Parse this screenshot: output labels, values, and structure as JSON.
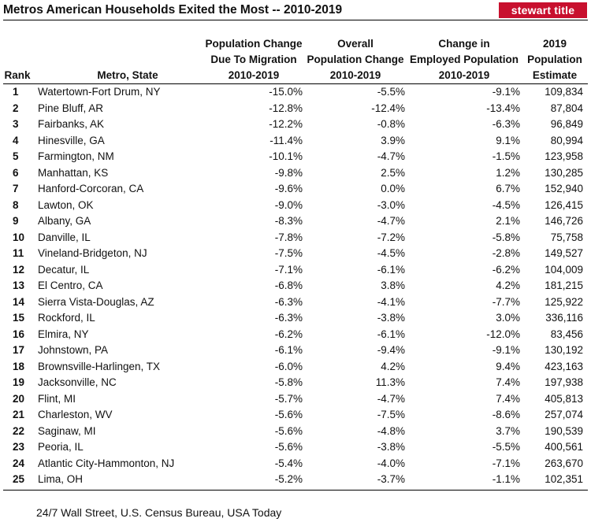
{
  "title": "Metros American Households Exited the Most -- 2010-2019",
  "logo_text": "stewart title",
  "brand_color": "#c8102e",
  "source": "24/7 Wall Street, U.S. Census Bureau, USA Today",
  "headers": {
    "rank": "Rank",
    "metro": "Metro, State",
    "migration": [
      "Population Change",
      "Due To Migration",
      "2010-2019"
    ],
    "overall": [
      "Overall",
      "Population Change",
      "2010-2019"
    ],
    "employed": [
      "Change in",
      "Employed Population",
      "2010-2019"
    ],
    "population": [
      "2019",
      "Population",
      "Estimate"
    ]
  },
  "chart_data": {
    "type": "table",
    "title": "Metros American Households Exited the Most -- 2010-2019",
    "columns": [
      "Rank",
      "Metro, State",
      "Population Change Due To Migration 2010-2019",
      "Overall Population Change 2010-2019",
      "Change in Employed Population 2010-2019",
      "2019 Population Estimate"
    ],
    "rows": [
      [
        "1",
        "Watertown-Fort Drum, NY",
        "-15.0%",
        "-5.5%",
        "-9.1%",
        "109,834"
      ],
      [
        "2",
        "Pine Bluff, AR",
        "-12.8%",
        "-12.4%",
        "-13.4%",
        "87,804"
      ],
      [
        "3",
        "Fairbanks, AK",
        "-12.2%",
        "-0.8%",
        "-6.3%",
        "96,849"
      ],
      [
        "4",
        "Hinesville, GA",
        "-11.4%",
        "3.9%",
        "9.1%",
        "80,994"
      ],
      [
        "5",
        "Farmington, NM",
        "-10.1%",
        "-4.7%",
        "-1.5%",
        "123,958"
      ],
      [
        "6",
        "Manhattan, KS",
        "-9.8%",
        "2.5%",
        "1.2%",
        "130,285"
      ],
      [
        "7",
        "Hanford-Corcoran, CA",
        "-9.6%",
        "0.0%",
        "6.7%",
        "152,940"
      ],
      [
        "8",
        "Lawton, OK",
        "-9.0%",
        "-3.0%",
        "-4.5%",
        "126,415"
      ],
      [
        "9",
        "Albany, GA",
        "-8.3%",
        "-4.7%",
        "2.1%",
        "146,726"
      ],
      [
        "10",
        "Danville, IL",
        "-7.8%",
        "-7.2%",
        "-5.8%",
        "75,758"
      ],
      [
        "11",
        "Vineland-Bridgeton, NJ",
        "-7.5%",
        "-4.5%",
        "-2.8%",
        "149,527"
      ],
      [
        "12",
        "Decatur, IL",
        "-7.1%",
        "-6.1%",
        "-6.2%",
        "104,009"
      ],
      [
        "13",
        "El Centro, CA",
        "-6.8%",
        "3.8%",
        "4.2%",
        "181,215"
      ],
      [
        "14",
        "Sierra Vista-Douglas, AZ",
        "-6.3%",
        "-4.1%",
        "-7.7%",
        "125,922"
      ],
      [
        "15",
        "Rockford, IL",
        "-6.3%",
        "-3.8%",
        "3.0%",
        "336,116"
      ],
      [
        "16",
        "Elmira, NY",
        "-6.2%",
        "-6.1%",
        "-12.0%",
        "83,456"
      ],
      [
        "17",
        "Johnstown, PA",
        "-6.1%",
        "-9.4%",
        "-9.1%",
        "130,192"
      ],
      [
        "18",
        "Brownsville-Harlingen, TX",
        "-6.0%",
        "4.2%",
        "9.4%",
        "423,163"
      ],
      [
        "19",
        "Jacksonville, NC",
        "-5.8%",
        "11.3%",
        "7.4%",
        "197,938"
      ],
      [
        "20",
        "Flint, MI",
        "-5.7%",
        "-4.7%",
        "7.4%",
        "405,813"
      ],
      [
        "21",
        "Charleston, WV",
        "-5.6%",
        "-7.5%",
        "-8.6%",
        "257,074"
      ],
      [
        "22",
        "Saginaw, MI",
        "-5.6%",
        "-4.8%",
        "3.7%",
        "190,539"
      ],
      [
        "23",
        "Peoria, IL",
        "-5.6%",
        "-3.8%",
        "-5.5%",
        "400,561"
      ],
      [
        "24",
        "Atlantic City-Hammonton, NJ",
        "-5.4%",
        "-4.0%",
        "-7.1%",
        "263,670"
      ],
      [
        "25",
        "Lima, OH",
        "-5.2%",
        "-3.7%",
        "-1.1%",
        "102,351"
      ]
    ]
  }
}
